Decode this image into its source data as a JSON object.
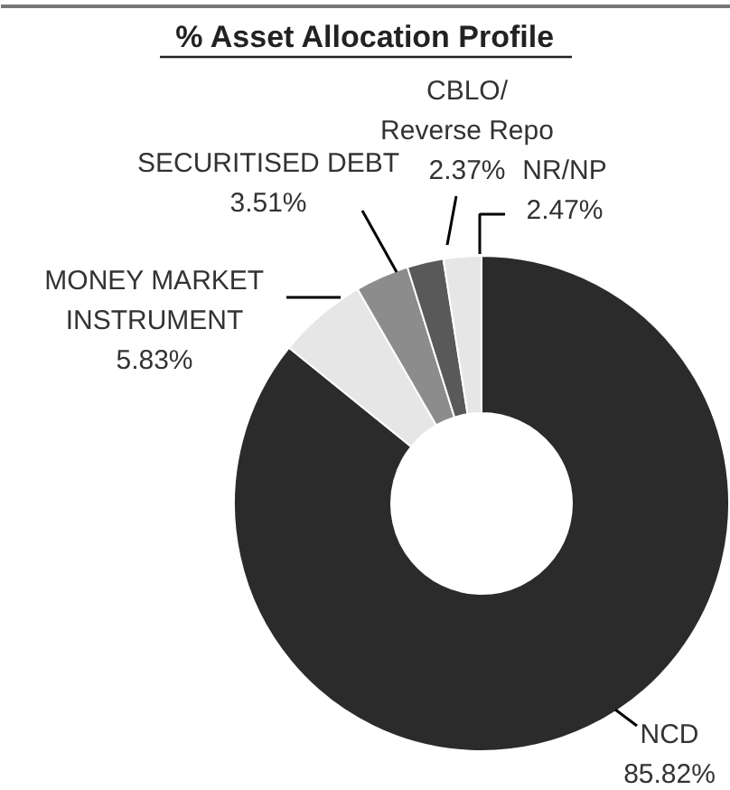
{
  "chart_data": {
    "type": "donut",
    "title": "% Asset Allocation Profile",
    "categories": [
      "NCD",
      "MONEY MARKET INSTRUMENT",
      "SECURITISED DEBT",
      "CBLO/ Reverse Repo",
      "NR/NP"
    ],
    "values": [
      85.82,
      5.83,
      3.51,
      2.37,
      2.47
    ],
    "value_labels": [
      "85.82%",
      "5.83%",
      "3.51%",
      "2.37%",
      "2.47%"
    ],
    "colors": [
      "#2b2b2b",
      "#e6e6e7",
      "#8c8c8c",
      "#595959",
      "#e6e6e7"
    ]
  }
}
